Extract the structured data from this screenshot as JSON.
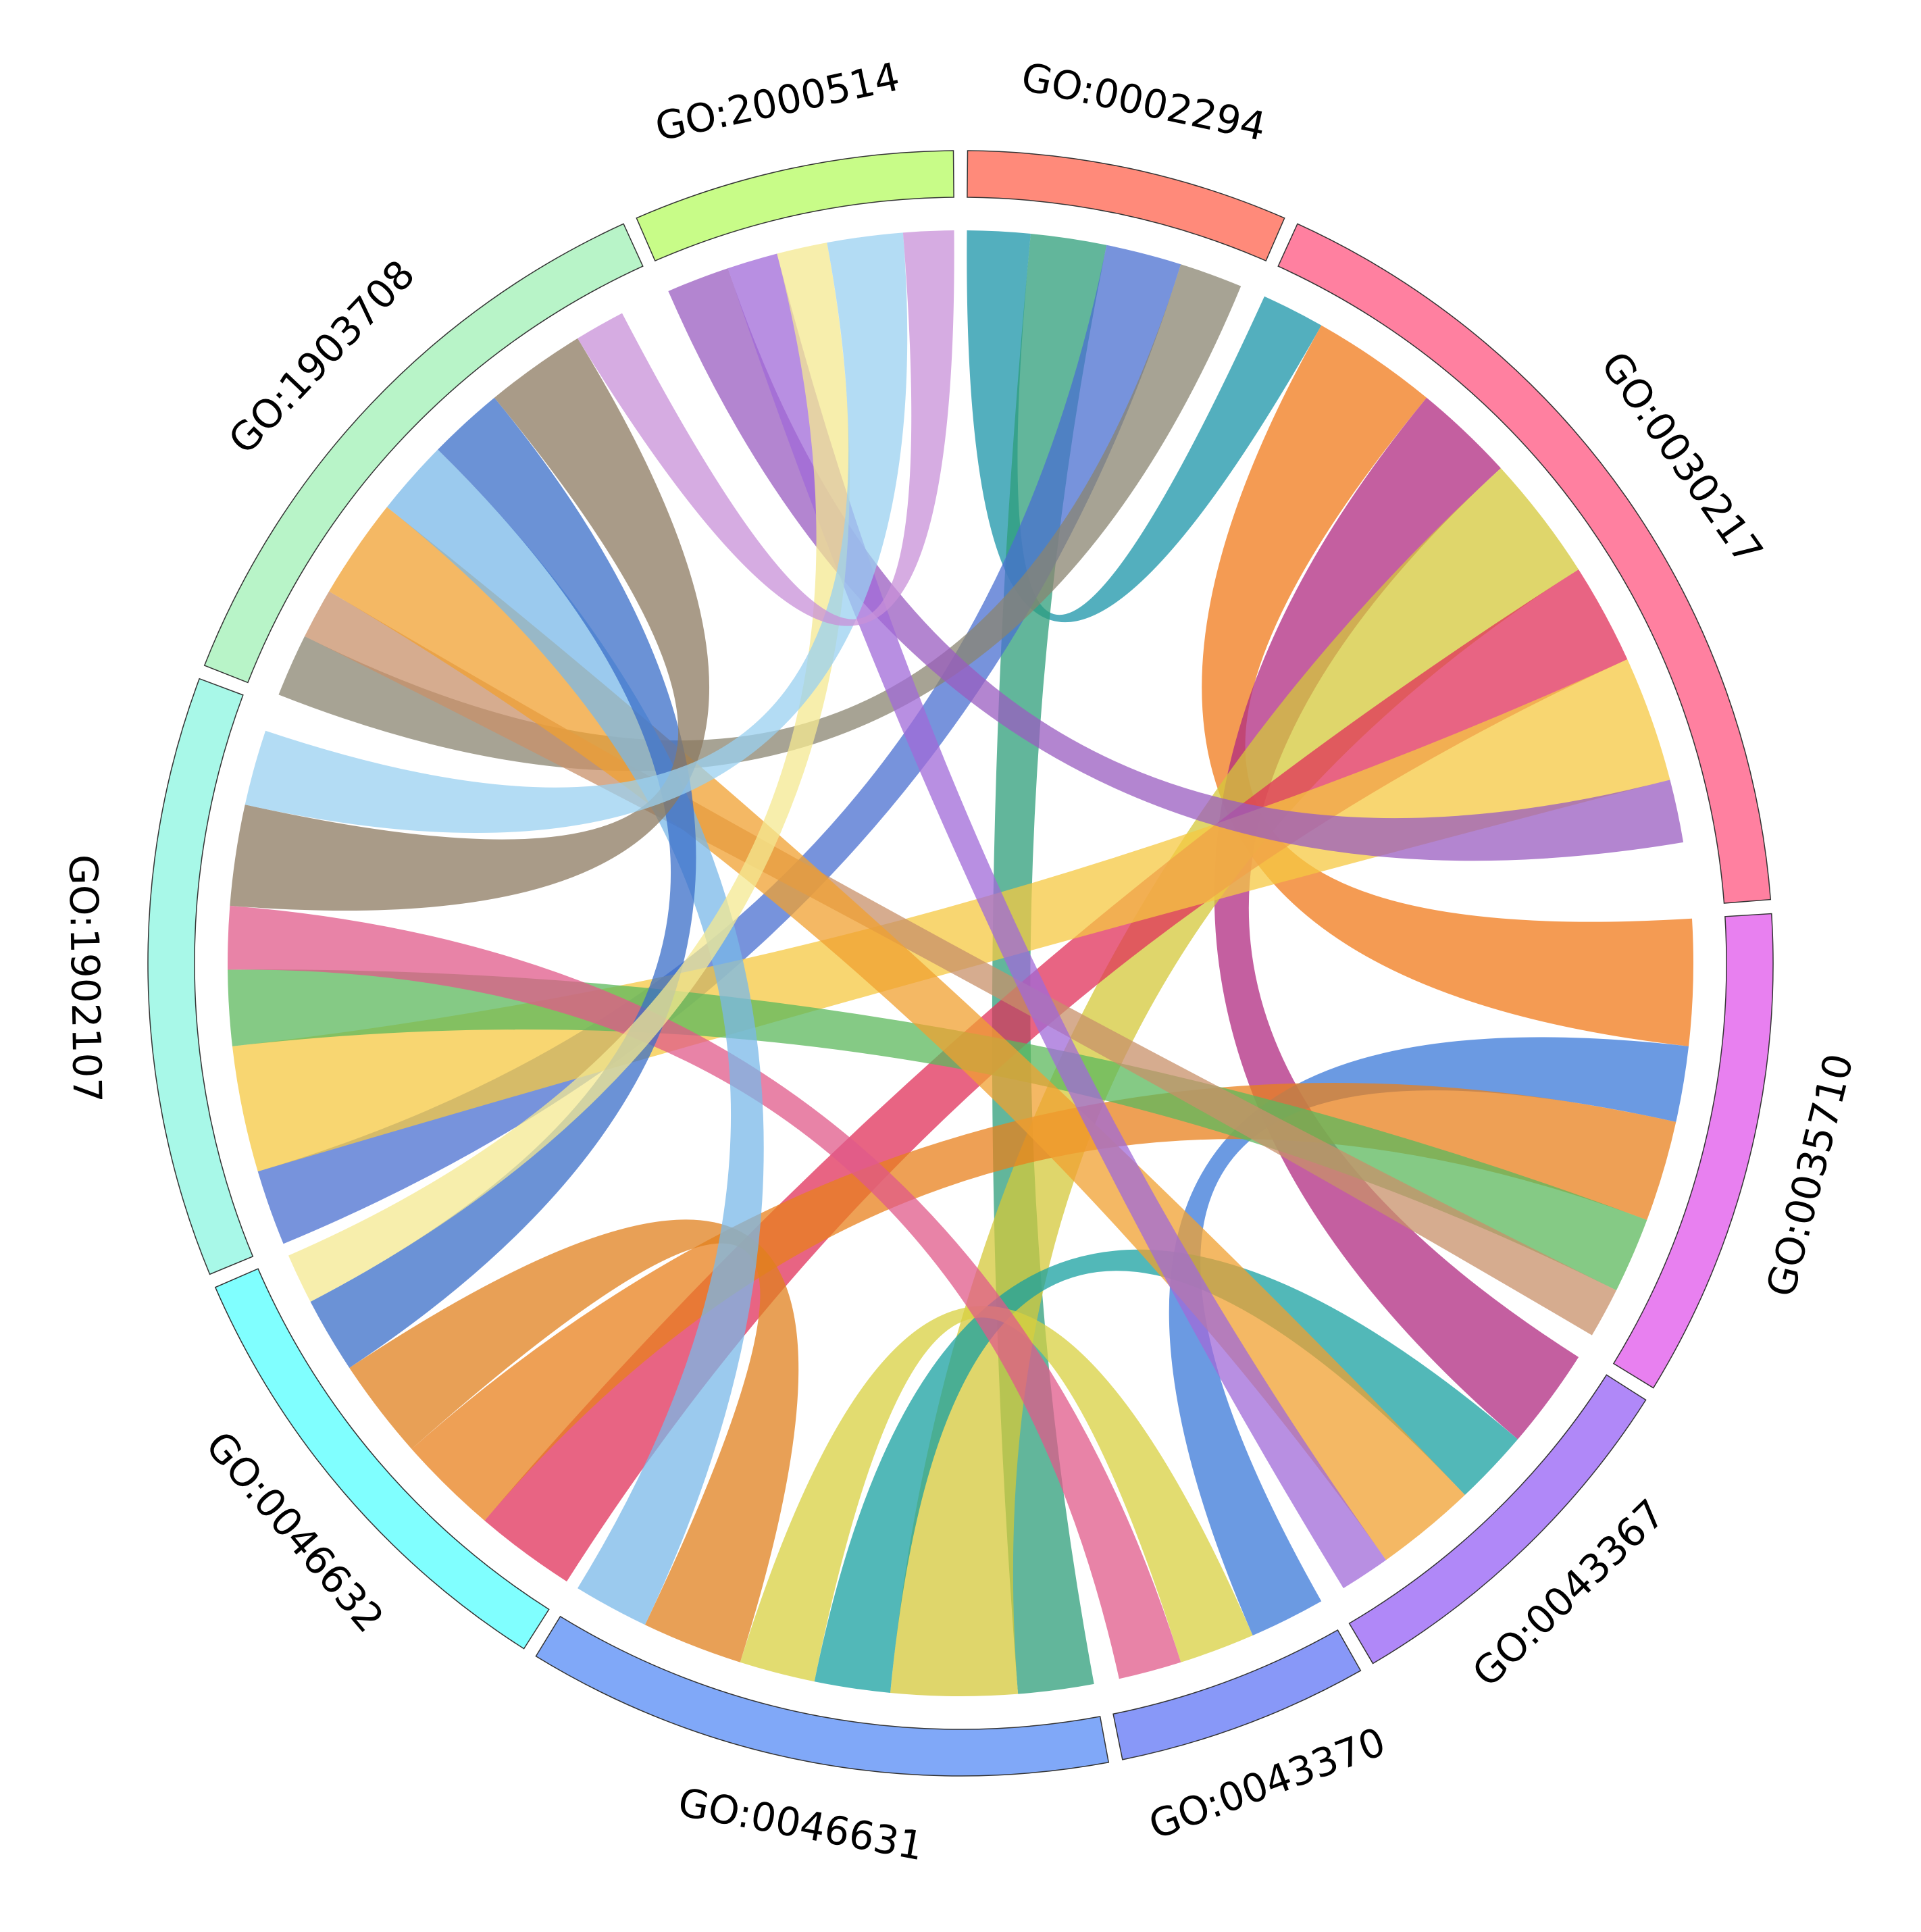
{
  "chart_data": {
    "type": "chord",
    "segments": [
      {
        "name": "GO:0002294",
        "value": 23,
        "color": "#ff8a7a"
      },
      {
        "name": "GO:0030217",
        "value": 61,
        "color": "#ff80a0"
      },
      {
        "name": "GO:0035710",
        "value": 35,
        "color": "#e880f0"
      },
      {
        "name": "GO:0043367",
        "value": 27,
        "color": "#b088f8"
      },
      {
        "name": "GO:0043370",
        "value": 18,
        "color": "#8898f8"
      },
      {
        "name": "GO:0046631",
        "value": 42,
        "color": "#80a8f8"
      },
      {
        "name": "GO:0046632",
        "value": 34,
        "color": "#80ffff"
      },
      {
        "name": "GO:1902107",
        "value": 43,
        "color": "#a8f8e8"
      },
      {
        "name": "GO:1903708",
        "value": 44,
        "color": "#b8f4c8"
      },
      {
        "name": "GO:2000514",
        "value": 23,
        "color": "#c8fc88"
      }
    ],
    "links": [
      {
        "source": 0,
        "target": 1,
        "value": 5,
        "color": "#1a94a8"
      },
      {
        "source": 0,
        "target": 5,
        "value": 6,
        "color": "#2e9e7a"
      },
      {
        "source": 0,
        "target": 7,
        "value": 6,
        "color": "#4a6fd0"
      },
      {
        "source": 0,
        "target": 8,
        "value": 5,
        "color": "#8a8470"
      },
      {
        "source": 1,
        "target": 2,
        "value": 10,
        "color": "#f07a1a"
      },
      {
        "source": 1,
        "target": 3,
        "value": 8,
        "color": "#b02a80"
      },
      {
        "source": 1,
        "target": 5,
        "value": 10,
        "color": "#d4c83a"
      },
      {
        "source": 1,
        "target": 6,
        "value": 8,
        "color": "#e0305a"
      },
      {
        "source": 1,
        "target": 7,
        "value": 10,
        "color": "#f5c842"
      },
      {
        "source": 1,
        "target": 9,
        "value": 5,
        "color": "#9a5cc0"
      },
      {
        "source": 2,
        "target": 4,
        "value": 6,
        "color": "#3a78d8"
      },
      {
        "source": 2,
        "target": 6,
        "value": 8,
        "color": "#e8801c"
      },
      {
        "source": 2,
        "target": 7,
        "value": 6,
        "color": "#5cb85c"
      },
      {
        "source": 2,
        "target": 8,
        "value": 4,
        "color": "#c8906a"
      },
      {
        "source": 3,
        "target": 5,
        "value": 6,
        "color": "#18a0a0"
      },
      {
        "source": 3,
        "target": 8,
        "value": 8,
        "color": "#f0a030"
      },
      {
        "source": 3,
        "target": 9,
        "value": 4,
        "color": "#a06ad8"
      },
      {
        "source": 4,
        "target": 5,
        "value": 6,
        "color": "#d8d040"
      },
      {
        "source": 4,
        "target": 7,
        "value": 5,
        "color": "#e05a8a"
      },
      {
        "source": 5,
        "target": 6,
        "value": 8,
        "color": "#e0801e"
      },
      {
        "source": 5,
        "target": 8,
        "value": 6,
        "color": "#7ab8e8"
      },
      {
        "source": 6,
        "target": 8,
        "value": 6,
        "color": "#3a6ec8"
      },
      {
        "source": 6,
        "target": 9,
        "value": 4,
        "color": "#f4e890"
      },
      {
        "source": 7,
        "target": 8,
        "value": 8,
        "color": "#8c7a60"
      },
      {
        "source": 7,
        "target": 9,
        "value": 6,
        "color": "#9ad0f0"
      },
      {
        "source": 8,
        "target": 9,
        "value": 4,
        "color": "#c890d8"
      }
    ]
  }
}
